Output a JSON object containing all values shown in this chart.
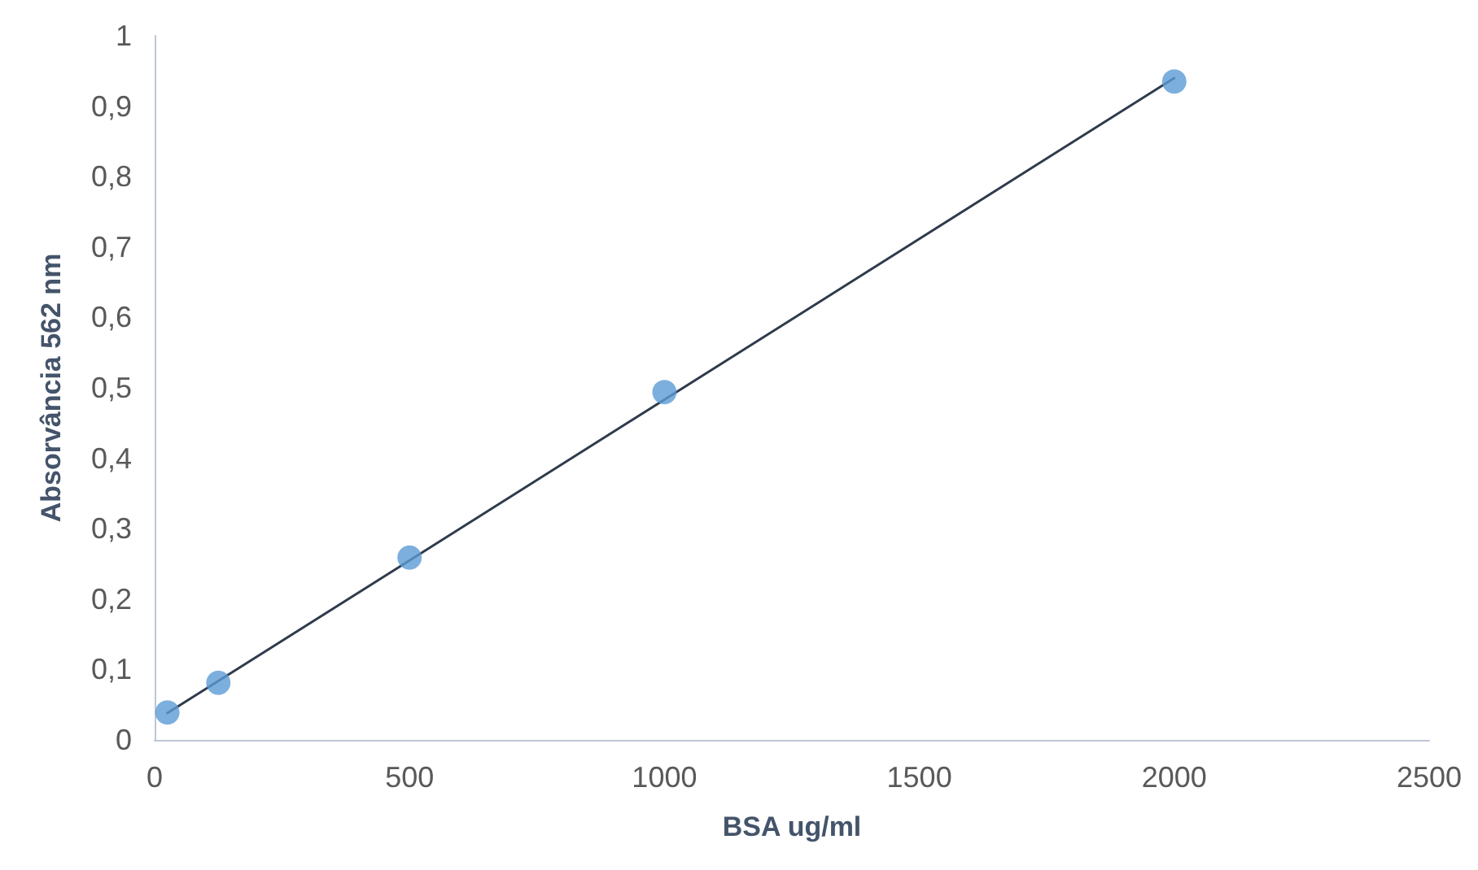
{
  "chart_data": {
    "type": "scatter",
    "xlabel": "BSA ug/ml",
    "ylabel": "Absorvância 562 nm",
    "xlim": [
      0,
      2500
    ],
    "xticks": [
      0,
      500,
      1000,
      1500,
      2000,
      2500
    ],
    "ylim": [
      0,
      1
    ],
    "yticks": [
      0,
      {
        "value": 0.1,
        "label": "0,1"
      },
      {
        "value": 0.2,
        "label": "0,2"
      },
      {
        "value": 0.3,
        "label": "0,3"
      },
      {
        "value": 0.4,
        "label": "0,4"
      },
      {
        "value": 0.5,
        "label": "0,5"
      },
      {
        "value": 0.6,
        "label": "0,6"
      },
      {
        "value": 0.7,
        "label": "0,7"
      },
      {
        "value": 0.8,
        "label": "0,8"
      },
      {
        "value": 0.9,
        "label": "0,9"
      },
      1
    ],
    "grid": false,
    "marker": "circle",
    "series": [
      {
        "color": "#5b9bd5",
        "x": [
          25,
          125,
          500,
          1000,
          2000
        ],
        "values": [
          0.039,
          0.081,
          0.259,
          0.494,
          0.935
        ]
      },
      {
        "type": "line",
        "color": "#2f3b4c",
        "marker": "none",
        "line_style": "solid",
        "x": [
          25,
          2000
        ],
        "values": [
          0.038,
          0.94
        ]
      }
    ]
  }
}
